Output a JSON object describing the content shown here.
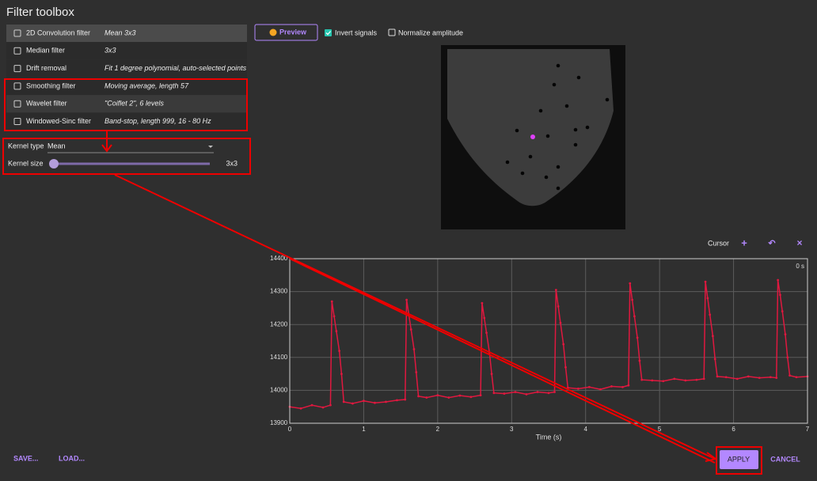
{
  "header": {
    "title": "Filter toolbox"
  },
  "filters": [
    {
      "name": "2D Convolution filter",
      "description": "Mean 3x3"
    },
    {
      "name": "Median filter",
      "description": "3x3"
    },
    {
      "name": "Drift removal",
      "description": "Fit 1 degree polynomial, auto-selected points"
    },
    {
      "name": "Smoothing filter",
      "description": "Moving average, length 57"
    },
    {
      "name": "Wavelet filter",
      "description": "\"Coiflet 2\", 6 levels"
    },
    {
      "name": "Windowed-Sinc filter",
      "description": "Band-stop, length 999, 16 - 80 Hz"
    }
  ],
  "kernel": {
    "type_label": "Kernel type",
    "type_value": "Mean",
    "size_label": "Kernel size",
    "size_value": "3x3"
  },
  "toolbar": {
    "preview": "Preview",
    "invert": "Invert signals",
    "normalize": "Normalize amplitude"
  },
  "cursor": {
    "label": "Cursor"
  },
  "chart_data": {
    "type": "line",
    "x_label": "Time (s)",
    "annotation": "0 s",
    "xlim": [
      0,
      7
    ],
    "xticks": [
      0,
      1,
      2,
      3,
      4,
      5,
      6,
      7
    ],
    "ylim": [
      13900,
      14400
    ],
    "yticks": [
      13900,
      14000,
      14100,
      14200,
      14300,
      14400
    ],
    "grid": true,
    "x": [
      0,
      0.15,
      0.3,
      0.45,
      0.55,
      0.57,
      0.6,
      0.63,
      0.67,
      0.7,
      0.73,
      0.85,
      1.0,
      1.15,
      1.3,
      1.45,
      1.56,
      1.58,
      1.61,
      1.64,
      1.68,
      1.71,
      1.74,
      1.85,
      2.0,
      2.15,
      2.3,
      2.45,
      2.58,
      2.6,
      2.63,
      2.66,
      2.7,
      2.73,
      2.76,
      2.9,
      3.05,
      3.2,
      3.35,
      3.5,
      3.58,
      3.6,
      3.63,
      3.66,
      3.7,
      3.73,
      3.76,
      3.9,
      4.05,
      4.2,
      4.35,
      4.5,
      4.58,
      4.6,
      4.63,
      4.66,
      4.7,
      4.73,
      4.76,
      4.9,
      5.05,
      5.2,
      5.35,
      5.5,
      5.6,
      5.62,
      5.65,
      5.68,
      5.72,
      5.75,
      5.78,
      5.9,
      6.05,
      6.2,
      6.35,
      6.5,
      6.58,
      6.6,
      6.63,
      6.66,
      6.7,
      6.73,
      6.76,
      6.85,
      7.0
    ],
    "series": [
      {
        "color": "#e0183f",
        "values": [
          13950,
          13945,
          13955,
          13948,
          13955,
          14270,
          14225,
          14180,
          14120,
          14050,
          13965,
          13960,
          13968,
          13962,
          13965,
          13970,
          13972,
          14275,
          14230,
          14185,
          14125,
          14055,
          13982,
          13978,
          13985,
          13978,
          13984,
          13980,
          13985,
          14265,
          14220,
          14175,
          14115,
          14050,
          13992,
          13990,
          13995,
          13988,
          13995,
          13992,
          13995,
          14305,
          14255,
          14205,
          14140,
          14070,
          14008,
          14005,
          14010,
          14003,
          14012,
          14010,
          14015,
          14325,
          14275,
          14225,
          14160,
          14090,
          14032,
          14030,
          14028,
          14035,
          14030,
          14032,
          14035,
          14330,
          14280,
          14230,
          14165,
          14095,
          14042,
          14040,
          14035,
          14042,
          14038,
          14040,
          14038,
          14335,
          14290,
          14240,
          14170,
          14100,
          14045,
          14040,
          14042
        ]
      }
    ]
  },
  "footer": {
    "save": "SAVE...",
    "load": "LOAD...",
    "apply": "APPLY",
    "cancel": "CANCEL"
  }
}
